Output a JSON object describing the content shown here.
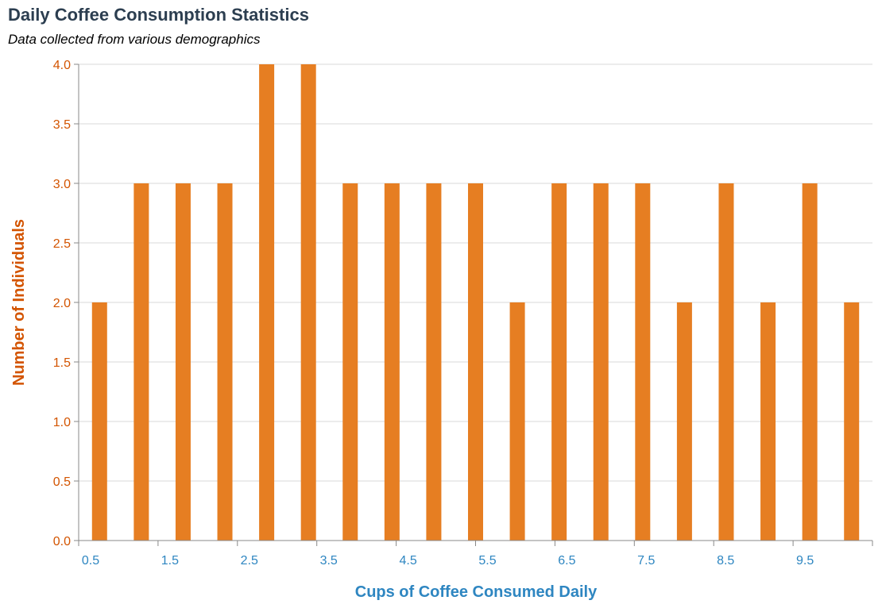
{
  "chart_data": {
    "type": "bar",
    "title": "Daily Coffee Consumption Statistics",
    "subtitle": "Data collected from various demographics",
    "xlabel": "Cups of Coffee Consumed Daily",
    "ylabel": "Number of Individuals",
    "x": [
      0.5,
      1.0,
      1.5,
      2.0,
      2.5,
      3.0,
      3.5,
      4.0,
      4.5,
      5.0,
      5.5,
      6.0,
      6.5,
      7.0,
      7.5,
      8.0,
      8.5,
      9.0,
      9.5
    ],
    "values": [
      2,
      3,
      3,
      3,
      4,
      4,
      3,
      3,
      3,
      3,
      2,
      3,
      3,
      3,
      2,
      3,
      2,
      3,
      2
    ],
    "xlim": [
      0.0,
      9.5
    ],
    "ylim": [
      0,
      4
    ],
    "x_ticks": [
      "0.5",
      "1.5",
      "2.5",
      "3.5",
      "4.5",
      "5.5",
      "6.5",
      "7.5",
      "8.5",
      "9.5"
    ],
    "y_ticks": [
      "0.0",
      "0.5",
      "1.0",
      "1.5",
      "2.0",
      "2.5",
      "3.0",
      "3.5",
      "4.0"
    ],
    "grid": "horizontal",
    "legend": "none",
    "colors": {
      "bar": "#e67e22",
      "title": "#2c3e50",
      "y_axis": "#d35400",
      "x_axis": "#2e86c1",
      "grid": "#d9d9d9",
      "axis_line": "#888888"
    }
  }
}
